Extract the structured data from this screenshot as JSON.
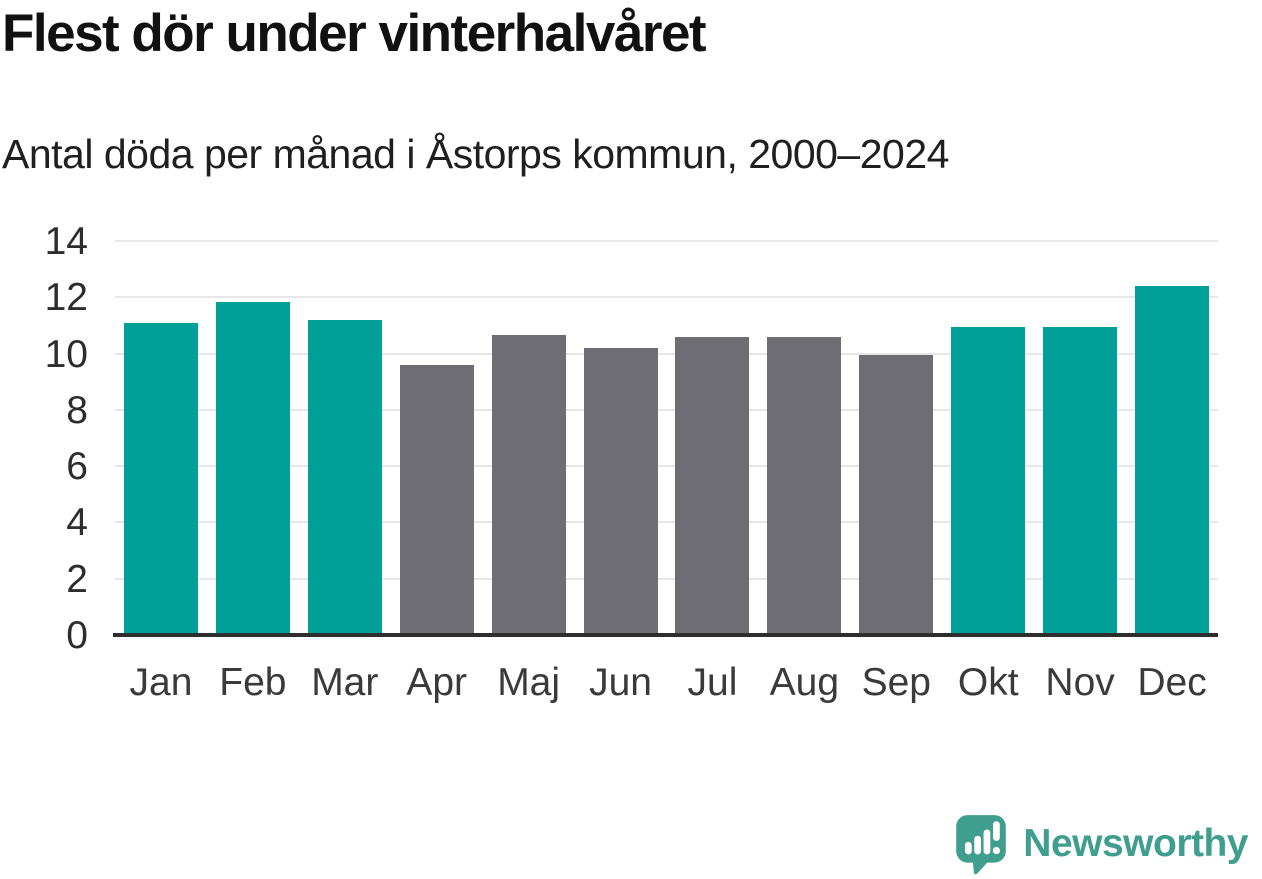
{
  "chart_data": {
    "type": "bar",
    "title": "Flest dör under vinterhalvåret",
    "subtitle": "Antal döda per månad i Åstorps kommun, 2000–2024",
    "categories": [
      "Jan",
      "Feb",
      "Mar",
      "Apr",
      "Maj",
      "Jun",
      "Jul",
      "Aug",
      "Sep",
      "Okt",
      "Nov",
      "Dec"
    ],
    "values": [
      11.1,
      11.85,
      11.2,
      9.6,
      10.65,
      10.2,
      10.6,
      10.6,
      9.95,
      10.95,
      10.95,
      12.4
    ],
    "bar_color_keys": [
      "winter",
      "winter",
      "winter",
      "summer",
      "summer",
      "summer",
      "summer",
      "summer",
      "summer",
      "winter",
      "winter",
      "winter"
    ],
    "colors": {
      "winter": "#00a099",
      "summer": "#6e6d73",
      "gridline": "#e7e7ea",
      "axis": "#2e2e2e"
    },
    "xlabel": "",
    "ylabel": "",
    "ylim": [
      0,
      14
    ],
    "ytick_step": 2,
    "yticks": [
      0,
      2,
      4,
      6,
      8,
      10,
      12,
      14
    ],
    "grid": "horizontal",
    "legend": "none"
  },
  "footer": {
    "logo_text": "Newsworthy",
    "logo_color": "#3f9e8e"
  }
}
